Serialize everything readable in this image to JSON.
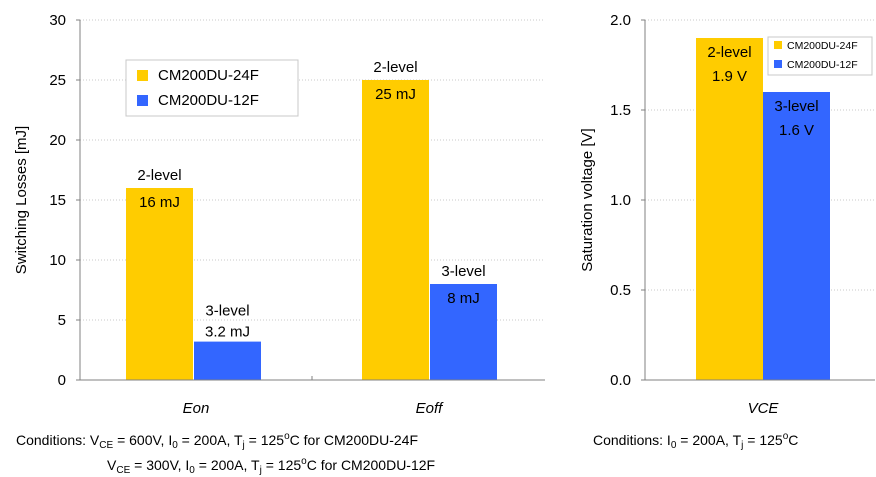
{
  "colors": {
    "series1": "#FFCC00",
    "series2": "#3366FF"
  },
  "chart_data": [
    {
      "type": "bar",
      "ylabel": "Switching Losses [mJ]",
      "ylim": [
        0,
        30
      ],
      "yticks": [
        "0",
        "5",
        "10",
        "15",
        "20",
        "25",
        "30"
      ],
      "categories": [
        "Eon",
        "Eoff"
      ],
      "grid": true,
      "legend_position": "top-left",
      "series": [
        {
          "name": "CM200DU-24F",
          "values": [
            16,
            25
          ],
          "labels": [
            [
              "2-level",
              "16 mJ"
            ],
            [
              "2-level",
              "25 mJ"
            ]
          ]
        },
        {
          "name": "CM200DU-12F",
          "values": [
            3.2,
            8
          ],
          "labels": [
            [
              "3-level",
              "3.2 mJ"
            ],
            [
              "3-level",
              "8 mJ"
            ]
          ]
        }
      ],
      "conditions": {
        "line1": {
          "a": "Conditions: V",
          "b": "CE",
          "c": " = 600V, I",
          "d": "0",
          "e": " = 200A, T",
          "f": "j",
          "g": " = 125",
          "h": "o",
          "i": "C for CM200DU-24F"
        },
        "line2": {
          "a": "V",
          "b": "CE",
          "c": " = 300V, I",
          "d": "0",
          "e": " = 200A, T",
          "f": "j",
          "g": " = 125",
          "h": "o",
          "i": "C for CM200DU-12F"
        }
      }
    },
    {
      "type": "bar",
      "ylabel": "Saturation voltage [V]",
      "ylim": [
        0,
        2
      ],
      "yticks": [
        "0.0",
        "0.5",
        "1.0",
        "1.5",
        "2.0"
      ],
      "categories": [
        "VCE"
      ],
      "grid": true,
      "legend_position": "top-right",
      "series": [
        {
          "name": "CM200DU-24F",
          "values": [
            1.9
          ],
          "labels": [
            [
              "2-level",
              "1.9 V"
            ]
          ]
        },
        {
          "name": "CM200DU-12F",
          "values": [
            1.6
          ],
          "labels": [
            [
              "3-level",
              "1.6 V"
            ]
          ]
        }
      ],
      "conditions": {
        "a": "Conditions: I",
        "b": "0",
        "c": " = 200A, T",
        "d": "j",
        "e": " = 125",
        "f": "o",
        "g": "C"
      }
    }
  ]
}
